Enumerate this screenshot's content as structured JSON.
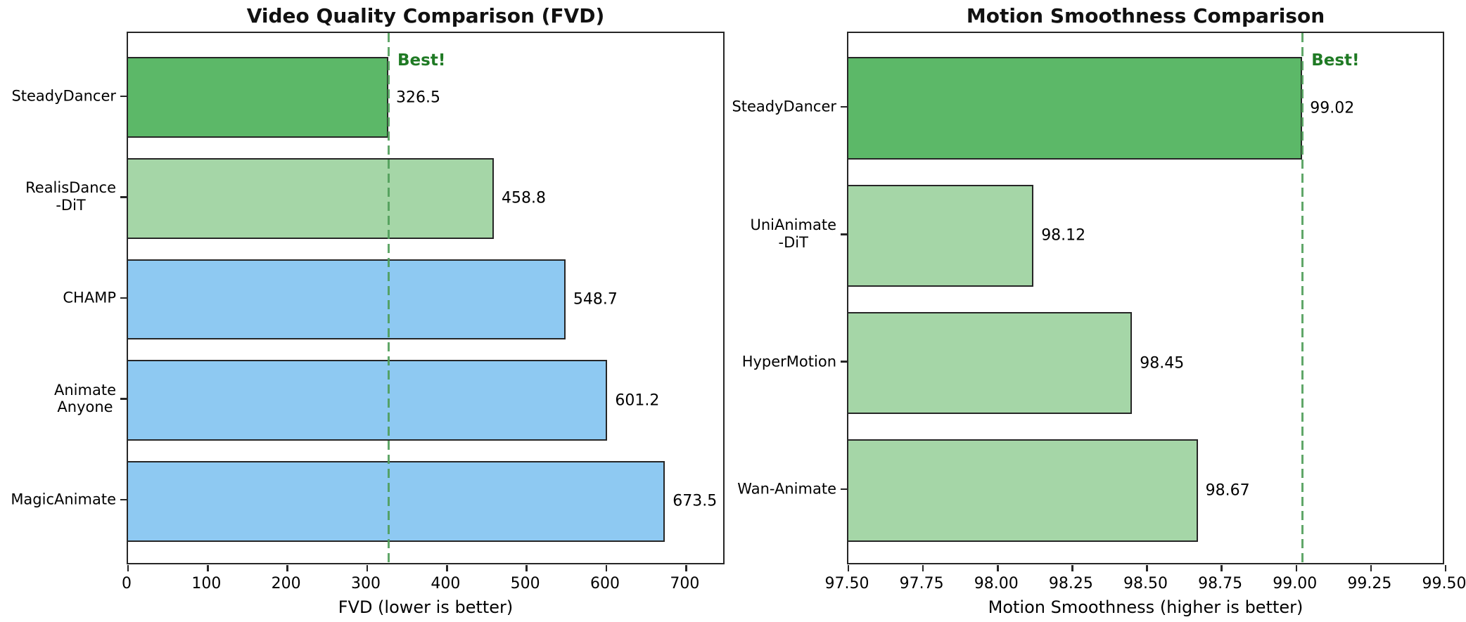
{
  "figure": {
    "background": "#ffffff",
    "colors": {
      "best_bar": "#5cb868",
      "green_light": "#a5d6a7",
      "blue": "#8ec9f2",
      "edge": "#262626",
      "best_line": "#4e9d58",
      "best_text": "#1f7a24"
    }
  },
  "chart_data": [
    {
      "type": "bar",
      "orientation": "horizontal",
      "title": "Video Quality Comparison (FVD)",
      "xlabel": "FVD (lower is better)",
      "xlim": [
        0,
        750
      ],
      "grid": false,
      "categories": [
        "SteadyDancer",
        "RealisDance\n-DiT",
        "CHAMP",
        "Animate\nAnyone",
        "MagicAnimate"
      ],
      "values": [
        326.5,
        458.8,
        548.7,
        601.2,
        673.5
      ],
      "value_labels": [
        "326.5",
        "458.8",
        "548.7",
        "601.2",
        "673.5"
      ],
      "bar_colors": [
        "best_bar",
        "green_light",
        "blue",
        "blue",
        "blue"
      ],
      "xticks": [
        0,
        100,
        200,
        300,
        400,
        500,
        600,
        700
      ],
      "xtick_labels": [
        "0",
        "100",
        "200",
        "300",
        "400",
        "500",
        "600",
        "700"
      ],
      "best_line_x": 326.5,
      "annotation": "Best!"
    },
    {
      "type": "bar",
      "orientation": "horizontal",
      "title": "Motion Smoothness Comparison",
      "xlabel": "Motion Smoothness (higher is better)",
      "xlim": [
        97.5,
        99.5
      ],
      "grid": false,
      "categories": [
        "SteadyDancer",
        "UniAnimate\n-DiT",
        "HyperMotion",
        "Wan-Animate"
      ],
      "values": [
        99.02,
        98.12,
        98.45,
        98.67
      ],
      "value_labels": [
        "99.02",
        "98.12",
        "98.45",
        "98.67"
      ],
      "bar_colors": [
        "best_bar",
        "green_light",
        "green_light",
        "green_light"
      ],
      "xticks": [
        97.5,
        97.75,
        98.0,
        98.25,
        98.5,
        98.75,
        99.0,
        99.25,
        99.5
      ],
      "xtick_labels": [
        "97.50",
        "97.75",
        "98.00",
        "98.25",
        "98.50",
        "98.75",
        "99.00",
        "99.25",
        "99.50"
      ],
      "best_line_x": 99.02,
      "annotation": "Best!"
    }
  ]
}
